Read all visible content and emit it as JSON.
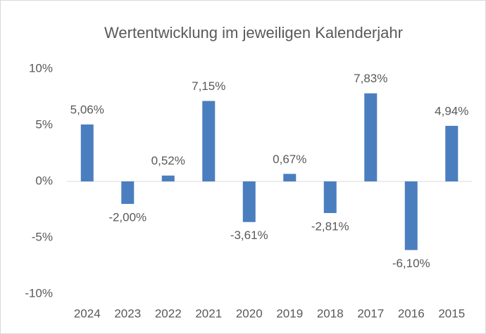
{
  "chart_data": {
    "type": "bar",
    "title": "Wertentwicklung im jeweiligen Kalenderjahr",
    "categories": [
      "2024",
      "2023",
      "2022",
      "2021",
      "2020",
      "2019",
      "2018",
      "2017",
      "2016",
      "2015"
    ],
    "values": [
      5.06,
      -2.0,
      0.52,
      7.15,
      -3.61,
      0.67,
      -2.81,
      7.83,
      -6.1,
      4.94
    ],
    "value_labels": [
      "5,06%",
      "-2,00%",
      "0,52%",
      "7,15%",
      "-3,61%",
      "0,67%",
      "-2,81%",
      "7,83%",
      "-6,10%",
      "4,94%"
    ],
    "color": "#4a7ebf",
    "ylim": [
      -10,
      10
    ],
    "yticks": [
      {
        "value": 10,
        "label": "10%"
      },
      {
        "value": 5,
        "label": "5%"
      },
      {
        "value": 0,
        "label": "0%"
      },
      {
        "value": -5,
        "label": "-5%"
      },
      {
        "value": -10,
        "label": "-10%"
      }
    ],
    "grid": false
  }
}
